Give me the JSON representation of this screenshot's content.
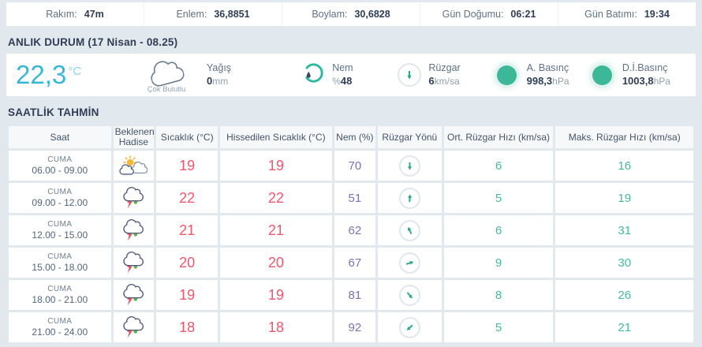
{
  "topbar": {
    "items": [
      {
        "label": "Rakım:",
        "value": "47m"
      },
      {
        "label": "Enlem:",
        "value": "36,8851"
      },
      {
        "label": "Boylam:",
        "value": "30,6828"
      },
      {
        "label": "Gün Doğumu:",
        "value": "06:21"
      },
      {
        "label": "Gün Batımı:",
        "value": "19:34"
      }
    ]
  },
  "current": {
    "section_title": "ANLIK DURUM",
    "section_subtitle": "(17 Nisan - 08.25)",
    "temperature": "22,3",
    "temperature_unit": "°C",
    "condition_icon": "cloudy-icon",
    "condition_label": "Çok Bulutlu",
    "metrics": [
      {
        "icon": "",
        "label": "Yağış",
        "prefix": "",
        "value": "0",
        "unit": "mm"
      },
      {
        "icon": "humidity-gauge-icon",
        "label": "Nem",
        "prefix": "%",
        "value": "48",
        "unit": ""
      },
      {
        "icon": "wind-direction-icon",
        "label": "Rüzgar",
        "prefix": "",
        "value": "6",
        "unit": "km/sa"
      },
      {
        "icon": "pressure-dot-icon",
        "label": "A. Basınç",
        "prefix": "",
        "value": "998,3",
        "unit": "hPa"
      },
      {
        "icon": "pressure-dot-icon",
        "label": "D.İ.Basınç",
        "prefix": "",
        "value": "1003,8",
        "unit": "hPa"
      }
    ]
  },
  "hourly": {
    "section_title": "SAATLİK TAHMİN",
    "columns": [
      "Saat",
      "Beklenen Hadise",
      "Sıcaklık (°C)",
      "Hissedilen Sıcaklık (°C)",
      "Nem (%)",
      "Rüzgar Yönü",
      "Ort. Rüzgar Hızı (km/sa)",
      "Maks. Rüzgar Hızı (km/sa)"
    ],
    "rows": [
      {
        "day": "CUMA",
        "time": "06.00 - 09.00",
        "icon": "partly-cloudy-icon",
        "temp": "19",
        "feels": "19",
        "humidity": "70",
        "wind_dir_deg": 180,
        "wind_avg": "6",
        "wind_max": "16"
      },
      {
        "day": "CUMA",
        "time": "09.00 - 12.00",
        "icon": "thunderstorm-rain-icon",
        "temp": "22",
        "feels": "22",
        "humidity": "51",
        "wind_dir_deg": 3,
        "wind_avg": "5",
        "wind_max": "19"
      },
      {
        "day": "CUMA",
        "time": "12.00 - 15.00",
        "icon": "thunderstorm-rain-icon",
        "temp": "21",
        "feels": "21",
        "humidity": "62",
        "wind_dir_deg": -25,
        "wind_avg": "6",
        "wind_max": "31"
      },
      {
        "day": "CUMA",
        "time": "15.00 - 18.00",
        "icon": "thunderstorm-rain-icon",
        "temp": "20",
        "feels": "20",
        "humidity": "67",
        "wind_dir_deg": 72,
        "wind_avg": "9",
        "wind_max": "30"
      },
      {
        "day": "CUMA",
        "time": "18.00 - 21.00",
        "icon": "thunderstorm-rain-icon",
        "temp": "19",
        "feels": "19",
        "humidity": "81",
        "wind_dir_deg": 140,
        "wind_avg": "8",
        "wind_max": "26"
      },
      {
        "day": "CUMA",
        "time": "21.00 - 24.00",
        "icon": "thunderstorm-rain-icon",
        "temp": "18",
        "feels": "18",
        "humidity": "92",
        "wind_dir_deg": 228,
        "wind_avg": "5",
        "wind_max": "21"
      }
    ]
  },
  "colors": {
    "accent_cyan": "#36b7da",
    "accent_teal": "#3cb899",
    "temp_red": "#f2566b",
    "humidity_purple": "#7d72b4",
    "navy_text": "#2f3e56",
    "page_bg": "#e2e9ee"
  }
}
